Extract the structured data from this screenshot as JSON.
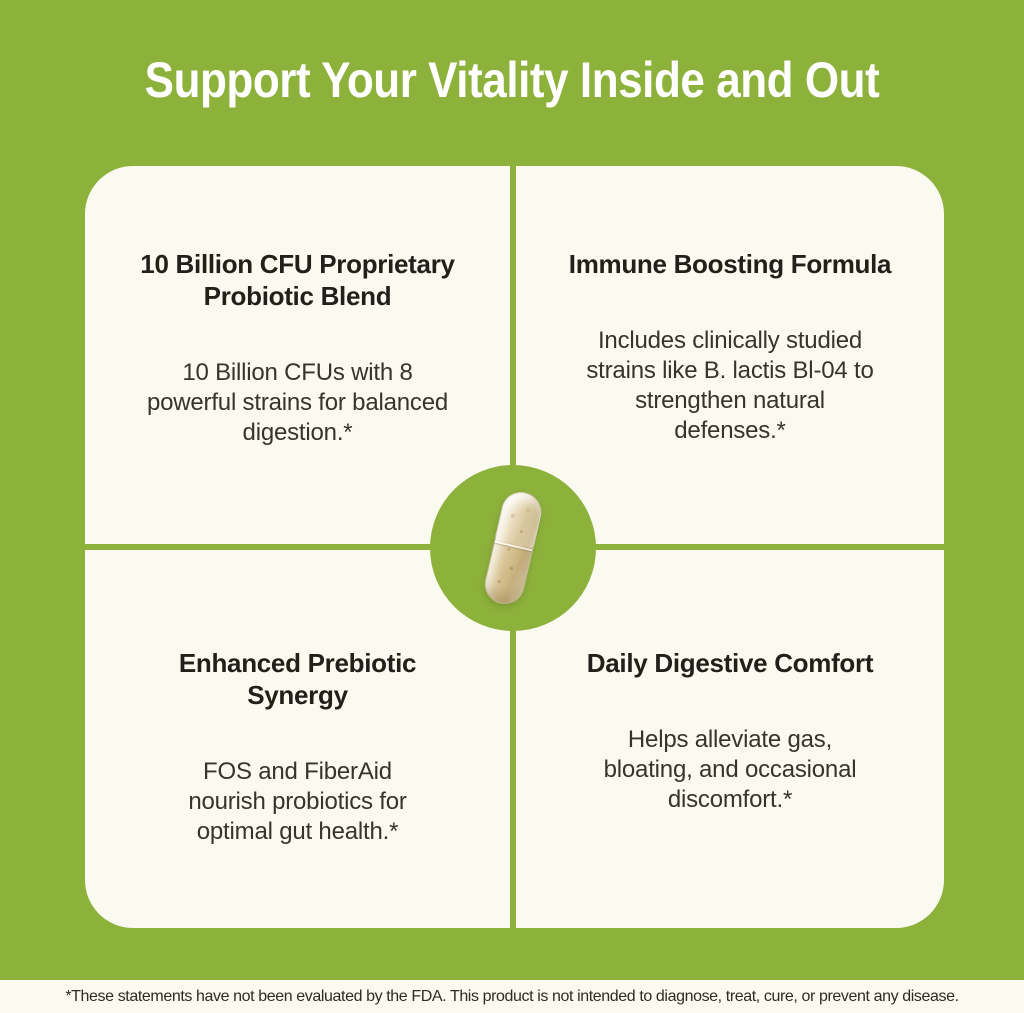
{
  "title": "Support Your Vitality Inside and Out",
  "quadrants": [
    {
      "position": "top-left",
      "heading": "10 Billion CFU Proprietary\nProbiotic Blend",
      "body": "10 Billion CFUs with 8\npowerful strains for balanced\ndigestion.*"
    },
    {
      "position": "top-right",
      "heading": "Immune Boosting Formula",
      "body": "Includes clinically studied\nstrains like B. lactis Bl-04 to\nstrengthen natural\ndefenses.*"
    },
    {
      "position": "bottom-left",
      "heading": "Enhanced Prebiotic\nSynergy",
      "body": "FOS and FiberAid\nnourish probiotics for\noptimal gut health.*"
    },
    {
      "position": "bottom-right",
      "heading": "Daily Digestive Comfort",
      "body": "Helps alleviate gas,\nbloating, and occasional\ndiscomfort.*"
    }
  ],
  "center": {
    "image": "clear-capsule-with-beige-powder"
  },
  "disclaimer": "*These statements have not been evaluated by the FDA. This product is not intended to diagnose, treat, cure, or prevent any disease.",
  "colors": {
    "background_green": "#8db23c",
    "card_cream": "#fbfaf0",
    "heading_text": "#21201a",
    "body_text": "#35342d",
    "title_text": "#ffffff",
    "capsule_powder": "#d2bd8c"
  }
}
